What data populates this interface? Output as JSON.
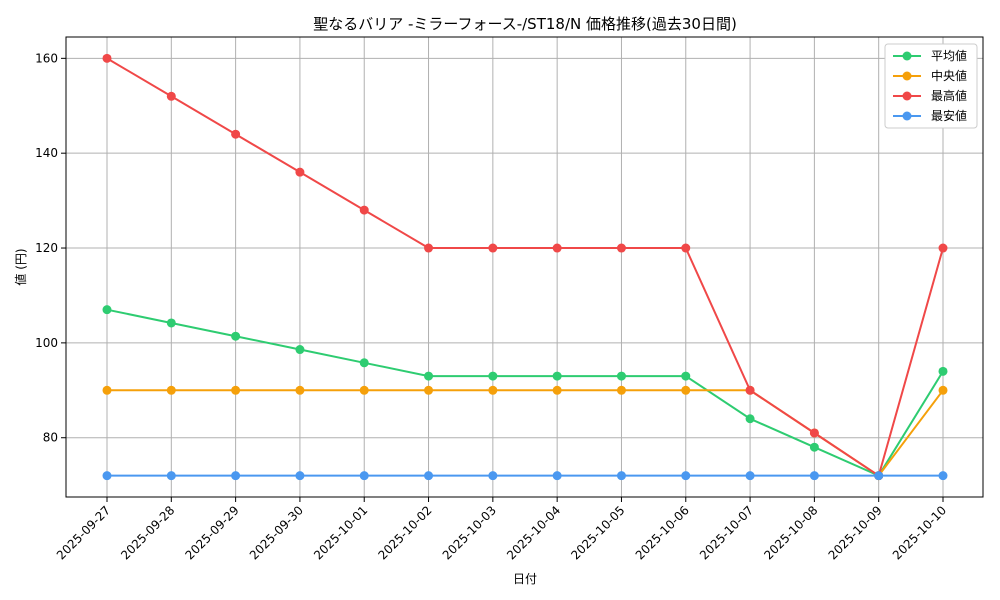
{
  "chart_data": {
    "type": "line",
    "title": "聖なるバリア -ミラーフォース-/ST18/N 価格推移(過去30日間)",
    "xlabel": "日付",
    "ylabel": "値 (円)",
    "categories": [
      "2025-09-27",
      "2025-09-28",
      "2025-09-29",
      "2025-09-30",
      "2025-10-01",
      "2025-10-02",
      "2025-10-03",
      "2025-10-04",
      "2025-10-05",
      "2025-10-06",
      "2025-10-07",
      "2025-10-08",
      "2025-10-09",
      "2025-10-10"
    ],
    "ylim": [
      67.5,
      164.5
    ],
    "yticks": [
      80,
      100,
      120,
      140,
      160
    ],
    "grid": true,
    "legend_position": "top-right",
    "series": [
      {
        "name": "平均値",
        "color": "#2ecc71",
        "values": [
          107,
          104.2,
          101.4,
          98.6,
          95.8,
          93,
          93,
          93,
          93,
          93,
          84,
          78,
          72,
          94
        ]
      },
      {
        "name": "中央値",
        "color": "#f5a00a",
        "values": [
          90,
          90,
          90,
          90,
          90,
          90,
          90,
          90,
          90,
          90,
          90,
          81,
          72,
          90
        ]
      },
      {
        "name": "最高値",
        "color": "#f04848",
        "values": [
          160,
          152,
          144,
          136,
          128,
          120,
          120,
          120,
          120,
          120,
          90,
          81,
          72,
          120
        ]
      },
      {
        "name": "最安値",
        "color": "#4a98f0",
        "values": [
          72,
          72,
          72,
          72,
          72,
          72,
          72,
          72,
          72,
          72,
          72,
          72,
          72,
          72
        ]
      }
    ]
  }
}
